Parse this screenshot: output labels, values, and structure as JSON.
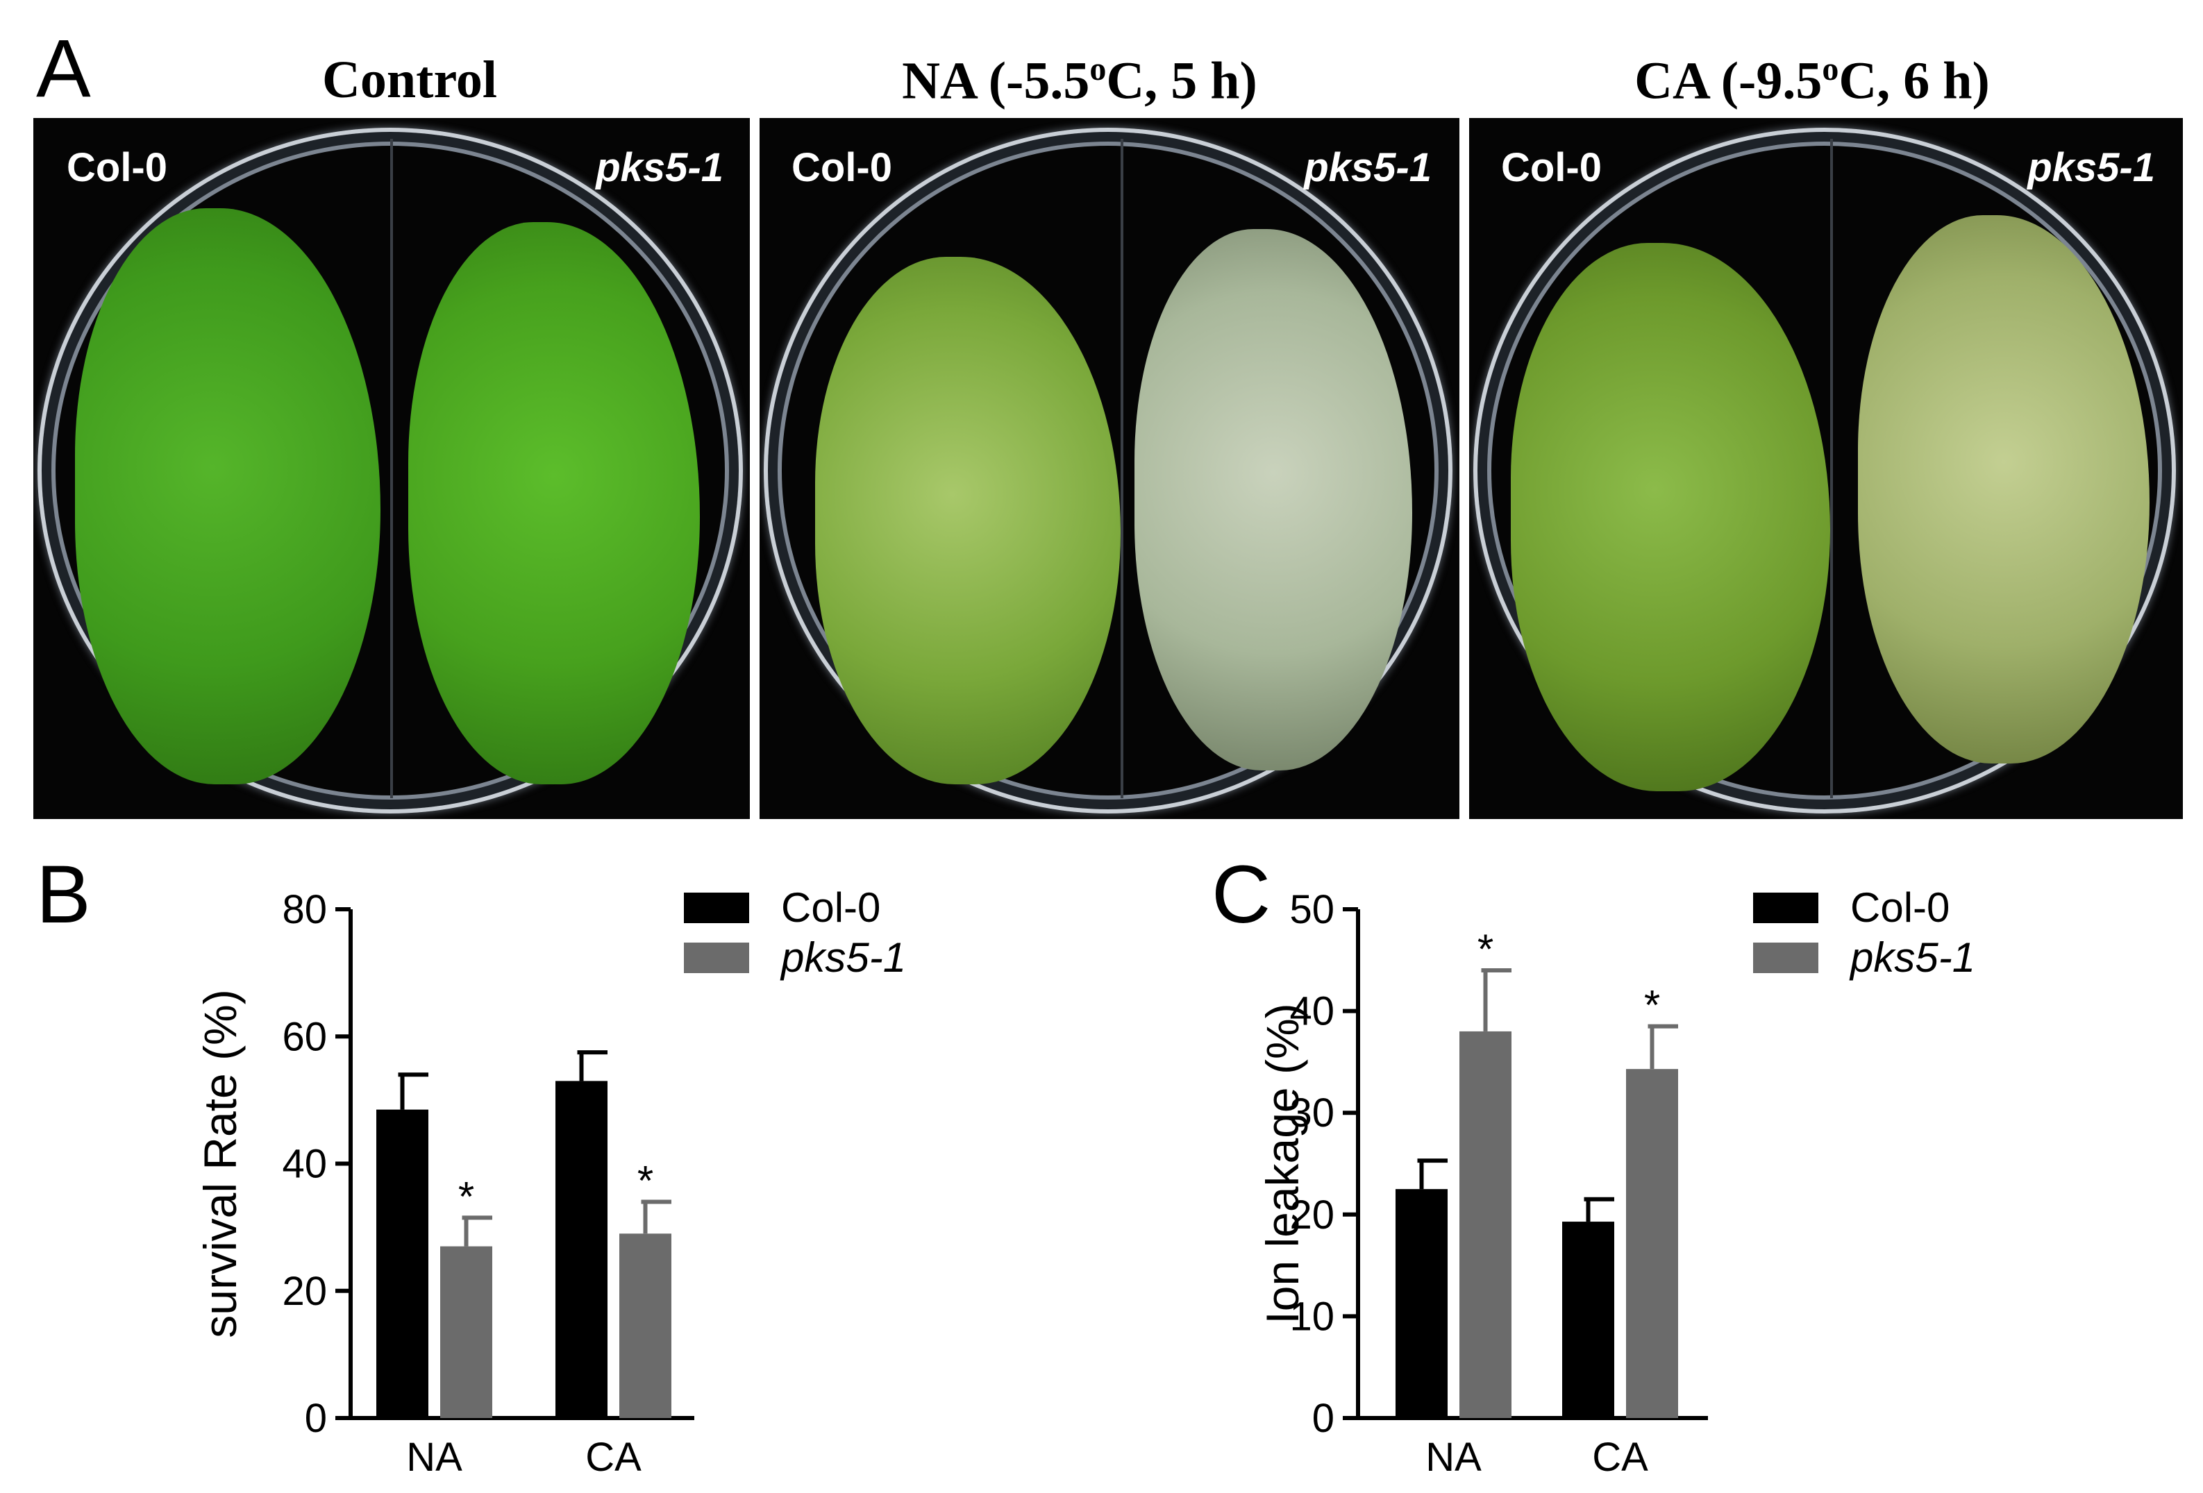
{
  "panel_a": {
    "letter": "A",
    "photos": [
      {
        "title": "Control",
        "left_label": "Col-0",
        "right_label": "pks5-1",
        "left_color": "#3f9a1c",
        "right_color": "#4aa41f"
      },
      {
        "title_pre": "NA (-5.5",
        "title_sup": "o",
        "title_post": "C, 5 h)",
        "left_label": "Col-0",
        "right_label": "pks5-1",
        "left_color": "#7aa83a",
        "right_color": "#a8b79a"
      },
      {
        "title_pre": "CA (-9.5",
        "title_sup": "o",
        "title_post": "C, 6 h)",
        "left_label": "Col-0",
        "right_label": "pks5-1",
        "left_color": "#6d9a2c",
        "right_color": "#9fb06a"
      }
    ]
  },
  "panel_b": {
    "letter": "B",
    "chart_data": {
      "type": "bar",
      "ylabel": "survival Rate (%)",
      "ylim": [
        0,
        80
      ],
      "yticks": [
        0,
        20,
        40,
        60,
        80
      ],
      "categories": [
        "NA",
        "CA"
      ],
      "series": [
        {
          "name": "Col-0",
          "color": "#000000",
          "values": [
            48.5,
            53
          ],
          "errors": [
            5.5,
            4.5
          ],
          "sig": [
            "",
            ""
          ]
        },
        {
          "name": "pks5-1",
          "color": "#6b6b6b",
          "values": [
            27,
            29
          ],
          "errors": [
            4.5,
            5
          ],
          "sig": [
            "*",
            "*"
          ]
        }
      ],
      "legend_position": "top-right",
      "grid": false
    }
  },
  "panel_c": {
    "letter": "C",
    "chart_data": {
      "type": "bar",
      "ylabel": "Ion leakage (%)",
      "ylim": [
        0,
        50
      ],
      "yticks": [
        0,
        10,
        20,
        30,
        40,
        50
      ],
      "categories": [
        "NA",
        "CA"
      ],
      "series": [
        {
          "name": "Col-0",
          "color": "#000000",
          "values": [
            22.5,
            19.3
          ],
          "errors": [
            2.8,
            2.2
          ],
          "sig": [
            "",
            ""
          ]
        },
        {
          "name": "pks5-1",
          "color": "#6b6b6b",
          "values": [
            38,
            34.3
          ],
          "errors": [
            6,
            4.2
          ],
          "sig": [
            "*",
            "*"
          ]
        }
      ],
      "legend_position": "top-right",
      "grid": false
    }
  }
}
